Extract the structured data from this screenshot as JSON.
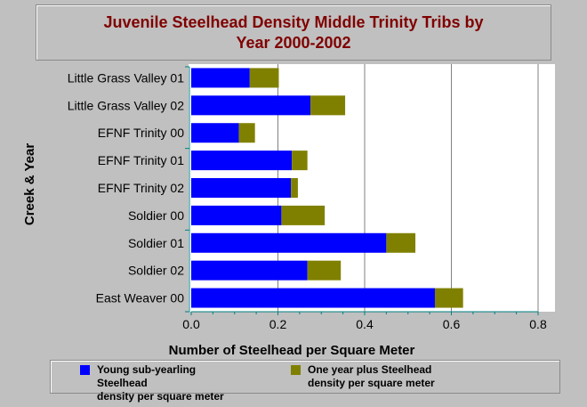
{
  "chart_data": {
    "type": "bar",
    "stacked": true,
    "orientation": "horizontal",
    "title": "Juvenile Steelhead Density Middle Trinity Tribs by Year 2000-2002",
    "title_lines": [
      "Juvenile Steelhead Density Middle Trinity Tribs by",
      "Year 2000-2002"
    ],
    "xlabel": "Number of Steelhead per Square Meter",
    "ylabel": "Creek & Year",
    "xlim": [
      0,
      0.8
    ],
    "xticks": [
      "0.0",
      "0.2",
      "0.4",
      "0.6",
      "0.8"
    ],
    "grid": true,
    "legend_position": "bottom",
    "categories": [
      "Little Grass Valley 01",
      "Little Grass Valley 02",
      "EFNF Trinity 00",
      "EFNF Trinity 01",
      "EFNF Trinity 02",
      "Soldier 00",
      "Soldier 01",
      "Soldier 02",
      "East Weaver 00"
    ],
    "series": [
      {
        "name": "Young sub-yearling Steelhead density per square meter",
        "color": "#0000ff",
        "values": [
          0.135,
          0.275,
          0.11,
          0.232,
          0.23,
          0.208,
          0.45,
          0.268,
          0.562
        ]
      },
      {
        "name": "One year plus Steelhead density per square meter",
        "color": "#808000",
        "values": [
          0.067,
          0.08,
          0.037,
          0.036,
          0.016,
          0.1,
          0.067,
          0.077,
          0.065
        ]
      }
    ]
  },
  "legend": {
    "item1_line1": "Young sub-yearling Steelhead",
    "item1_line2": "density per square meter",
    "item2_line1": "One year plus Steelhead",
    "item2_line2": "density per square meter"
  },
  "colors": {
    "background": "#c0c0c0",
    "plot_background": "#ffffff",
    "title": "#800000",
    "grid": "#808080",
    "axis": "#008080"
  }
}
